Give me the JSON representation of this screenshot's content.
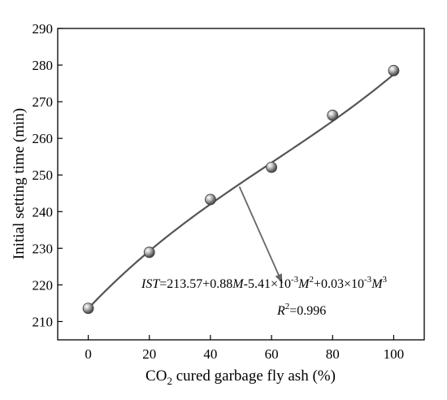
{
  "chart_data": {
    "type": "scatter",
    "xlabel": {
      "main": "CO",
      "sub": "2",
      "rest": " cured garbage fly ash (%)"
    },
    "ylabel": "Initial setting time (min)",
    "xlim": [
      -10,
      110
    ],
    "ylim": [
      205,
      290
    ],
    "xticks": [
      0,
      20,
      40,
      60,
      80,
      100
    ],
    "yticks": [
      210,
      220,
      230,
      240,
      250,
      260,
      270,
      280,
      290
    ],
    "xtick_labels": [
      "0",
      "20",
      "40",
      "60",
      "80",
      "100"
    ],
    "ytick_labels": [
      "210",
      "220",
      "230",
      "240",
      "250",
      "260",
      "270",
      "280",
      "290"
    ],
    "x": [
      0,
      20,
      40,
      60,
      80,
      100
    ],
    "y": [
      213.6,
      228.9,
      243.3,
      252.1,
      266.3,
      278.5
    ],
    "fit": {
      "intercept": 213.57,
      "a1": 0.88,
      "a2": -0.00541,
      "a3": 3e-05
    },
    "arrow": {
      "from_x": 49.5,
      "from_y": 246.8,
      "to_x": 63.5,
      "to_y": 220.5
    },
    "equation": {
      "p1": "IST",
      "p2": "=213.57+0.88",
      "p3": "M",
      "p4": "-5.41×10",
      "p5": "-3",
      "p6": "M",
      "p7": "2",
      "p8": "+0.03×10",
      "p9": "-3",
      "p10": "M",
      "p11": "3"
    },
    "r2": {
      "p1": "R",
      "p2": "2",
      "p3": "=0.996"
    },
    "grid": false,
    "colors": {
      "marker": "#8a8a8a",
      "line": "#555555",
      "arrow": "#666666"
    }
  }
}
